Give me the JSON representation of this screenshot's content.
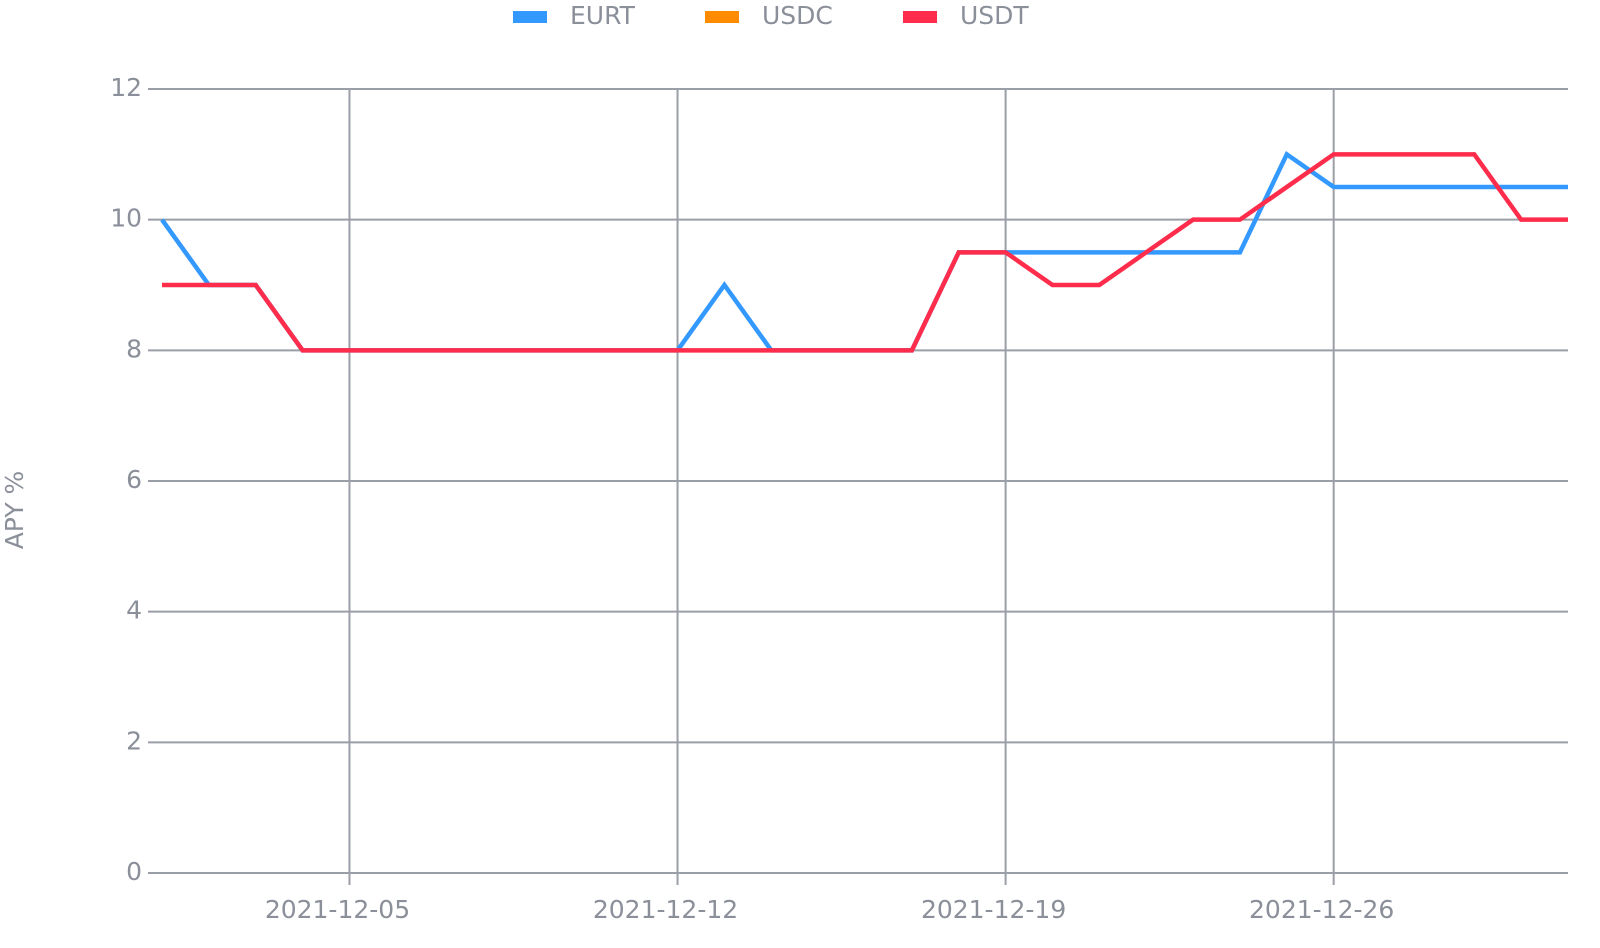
{
  "chart_data": {
    "type": "line",
    "ylabel": "APY %",
    "x": [
      "2021-12-01",
      "2021-12-02",
      "2021-12-03",
      "2021-12-04",
      "2021-12-05",
      "2021-12-06",
      "2021-12-07",
      "2021-12-08",
      "2021-12-09",
      "2021-12-10",
      "2021-12-11",
      "2021-12-12",
      "2021-12-13",
      "2021-12-14",
      "2021-12-15",
      "2021-12-16",
      "2021-12-17",
      "2021-12-18",
      "2021-12-19",
      "2021-12-20",
      "2021-12-21",
      "2021-12-22",
      "2021-12-23",
      "2021-12-24",
      "2021-12-25",
      "2021-12-26",
      "2021-12-27",
      "2021-12-28",
      "2021-12-29",
      "2021-12-30",
      "2021-12-31"
    ],
    "series": [
      {
        "name": "EURT",
        "color": "#3399ff",
        "values": [
          10,
          9,
          9,
          8,
          8,
          8,
          8,
          8,
          8,
          8,
          8,
          8,
          9,
          8,
          8,
          8,
          8,
          9.5,
          9.5,
          9.5,
          9.5,
          9.5,
          9.5,
          9.5,
          11,
          10.5,
          10.5,
          10.5,
          10.5,
          10.5,
          10.5
        ]
      },
      {
        "name": "USDC",
        "color": "#ff8c00",
        "values": [
          null,
          null,
          null,
          null,
          null,
          null,
          null,
          null,
          null,
          null,
          null,
          null,
          null,
          null,
          null,
          null,
          null,
          null,
          null,
          null,
          null,
          null,
          null,
          null,
          null,
          null,
          null,
          null,
          null,
          null,
          null
        ]
      },
      {
        "name": "USDT",
        "color": "#ff2d4b",
        "values": [
          9,
          9,
          9,
          8,
          8,
          8,
          8,
          8,
          8,
          8,
          8,
          8,
          8,
          8,
          8,
          8,
          8,
          9.5,
          9.5,
          9,
          9,
          9.5,
          10,
          10,
          10.5,
          11,
          11,
          11,
          11,
          10,
          10
        ]
      }
    ],
    "xlim": [
      "2021-12-01",
      "2021-12-31"
    ],
    "xticks": [
      "2021-12-05",
      "2021-12-12",
      "2021-12-19",
      "2021-12-26"
    ],
    "ylim": [
      0,
      12
    ],
    "yticks": [
      0,
      2,
      4,
      6,
      8,
      10,
      12
    ],
    "grid": true,
    "legend": "top"
  }
}
